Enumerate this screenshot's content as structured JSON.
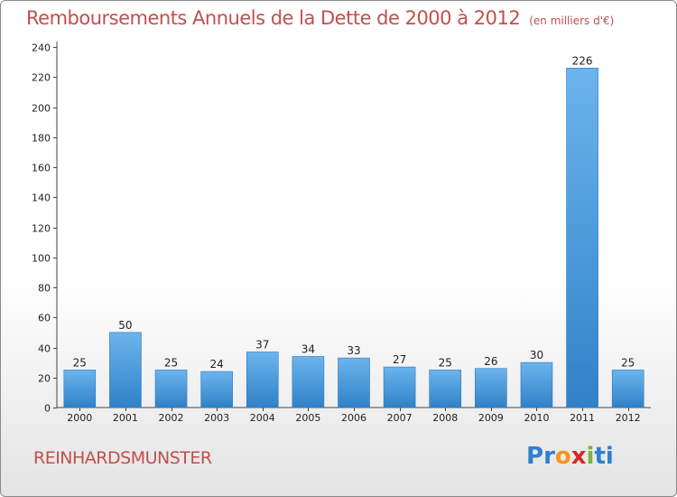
{
  "title": "Remboursements Annuels de la Dette de 2000 à 2012",
  "unit": "(en milliers d'€)",
  "commune": "REINHARDSMUNSTER",
  "logo": {
    "text": "Proxiti",
    "colors": [
      "#2f7fd1",
      "#2f7fd1",
      "#f7941d",
      "#d62828",
      "#7cb342",
      "#2f7fd1",
      "#2f7fd1"
    ]
  },
  "colors": {
    "bar_light": "#6cb4ec",
    "bar_dark": "#2f82c8",
    "title": "#c0504d"
  },
  "chart_data": {
    "type": "bar",
    "title": "Remboursements Annuels de la Dette de 2000 à 2012",
    "xlabel": "",
    "ylabel": "",
    "categories": [
      "2000",
      "2001",
      "2002",
      "2003",
      "2004",
      "2005",
      "2006",
      "2007",
      "2008",
      "2009",
      "2010",
      "2011",
      "2012"
    ],
    "values": [
      25,
      50,
      25,
      24,
      37,
      34,
      33,
      27,
      25,
      26,
      30,
      226,
      25
    ],
    "ylim": [
      0,
      240
    ],
    "yticks": [
      0,
      20,
      40,
      60,
      80,
      100,
      120,
      140,
      160,
      180,
      200,
      220,
      240
    ],
    "grid": false,
    "data_labels": true
  }
}
